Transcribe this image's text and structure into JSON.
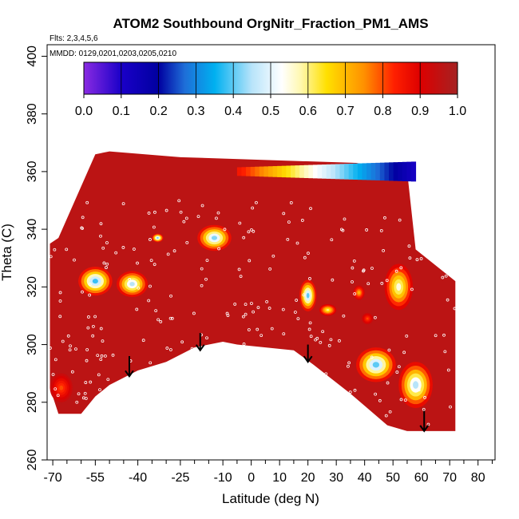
{
  "chart_data": {
    "type": "heatmap",
    "title": "ATOM2 Southbound OrgNitr_Fraction_PM1_AMS",
    "subtitle_flights": "Flts: 2,3,4,5,6",
    "subtitle_dates": "MMDD: 0129,0201,0203,0205,0210",
    "xlabel": "Latitude (deg N)",
    "ylabel": "Theta (C)",
    "xlim": [
      -72,
      86
    ],
    "ylim": [
      260,
      404
    ],
    "x_ticks": [
      -70,
      -55,
      -40,
      -25,
      -10,
      0,
      10,
      20,
      30,
      40,
      50,
      60,
      70,
      80
    ],
    "x_minor_ticks": [
      -65,
      -60,
      -50,
      -45,
      -35,
      -30,
      -20,
      -15,
      -5,
      5,
      15,
      25,
      35,
      45,
      55,
      65,
      75,
      85
    ],
    "y_ticks": [
      260,
      280,
      300,
      320,
      340,
      360,
      380,
      400
    ],
    "colorbar": {
      "min": 0.0,
      "max": 1.0,
      "tick_labels": [
        "0.0",
        "0.1",
        "0.2",
        "0.3",
        "0.4",
        "0.5",
        "0.6",
        "0.7",
        "0.8",
        "0.9",
        "1.0"
      ],
      "stops": [
        {
          "v": 0.0,
          "c": "#8a2be2"
        },
        {
          "v": 0.1,
          "c": "#1a00c8"
        },
        {
          "v": 0.2,
          "c": "#0000a0"
        },
        {
          "v": 0.27,
          "c": "#1e6ed8"
        },
        {
          "v": 0.35,
          "c": "#00b0f0"
        },
        {
          "v": 0.45,
          "c": "#b8e4fa"
        },
        {
          "v": 0.53,
          "c": "#ffffff"
        },
        {
          "v": 0.58,
          "c": "#fff8b0"
        },
        {
          "v": 0.65,
          "c": "#ffe000"
        },
        {
          "v": 0.75,
          "c": "#ff9000"
        },
        {
          "v": 0.83,
          "c": "#ff2000"
        },
        {
          "v": 0.9,
          "c": "#dd0000"
        },
        {
          "v": 1.0,
          "c": "#a52222"
        }
      ]
    },
    "background_value": 0.96,
    "domain_polygon": [
      [
        -71,
        300
      ],
      [
        -71,
        335
      ],
      [
        -68,
        337
      ],
      [
        -55,
        366
      ],
      [
        -50,
        367
      ],
      [
        -25,
        365
      ],
      [
        37,
        363
      ],
      [
        55,
        360
      ],
      [
        58,
        333
      ],
      [
        72,
        322
      ],
      [
        72,
        270
      ],
      [
        55,
        270
      ],
      [
        48,
        272
      ],
      [
        35,
        283
      ],
      [
        22,
        293
      ],
      [
        15,
        298
      ],
      [
        -5,
        300
      ],
      [
        -10,
        301
      ],
      [
        -20,
        299
      ],
      [
        -30,
        294
      ],
      [
        -40,
        291
      ],
      [
        -50,
        286
      ],
      [
        -55,
        282
      ],
      [
        -60,
        276
      ],
      [
        -68,
        276
      ],
      [
        -71,
        285
      ]
    ],
    "features": [
      {
        "x": -55,
        "y": 322,
        "rx": 6,
        "ry": 5,
        "v": 0.38
      },
      {
        "x": -42,
        "y": 321,
        "rx": 5.5,
        "ry": 4.5,
        "v": 0.45
      },
      {
        "x": -13,
        "y": 337,
        "rx": 6,
        "ry": 4.5,
        "v": 0.42
      },
      {
        "x": 20,
        "y": 317,
        "rx": 3,
        "ry": 5.5,
        "v": 0.4
      },
      {
        "x": 27,
        "y": 312,
        "rx": 3,
        "ry": 2,
        "v": 0.6
      },
      {
        "x": 38,
        "y": 318,
        "rx": 2,
        "ry": 2.5,
        "v": 0.7
      },
      {
        "x": 41,
        "y": 309,
        "rx": 2,
        "ry": 2,
        "v": 0.8
      },
      {
        "x": 44,
        "y": 293,
        "rx": 7,
        "ry": 6,
        "v": 0.4
      },
      {
        "x": 52,
        "y": 320,
        "rx": 5,
        "ry": 8,
        "v": 0.55
      },
      {
        "x": 58,
        "y": 286,
        "rx": 6,
        "ry": 8,
        "v": 0.45
      },
      {
        "x": -33,
        "y": 337,
        "rx": 2,
        "ry": 1.5,
        "v": 0.4
      },
      {
        "x": -67,
        "y": 285,
        "rx": 4,
        "ry": 5,
        "v": 0.8
      }
    ],
    "top_band": {
      "x_start": -5,
      "x_end": 58,
      "y": 360,
      "v_start": 0.85,
      "v_end": 0.1
    },
    "arrows": [
      {
        "x": -43,
        "y_top": 296,
        "y_bottom": 289
      },
      {
        "x": -18,
        "y_top": 304,
        "y_bottom": 298
      },
      {
        "x": 20,
        "y_top": 300,
        "y_bottom": 294
      },
      {
        "x": 61,
        "y_top": 277,
        "y_bottom": 270
      }
    ]
  }
}
